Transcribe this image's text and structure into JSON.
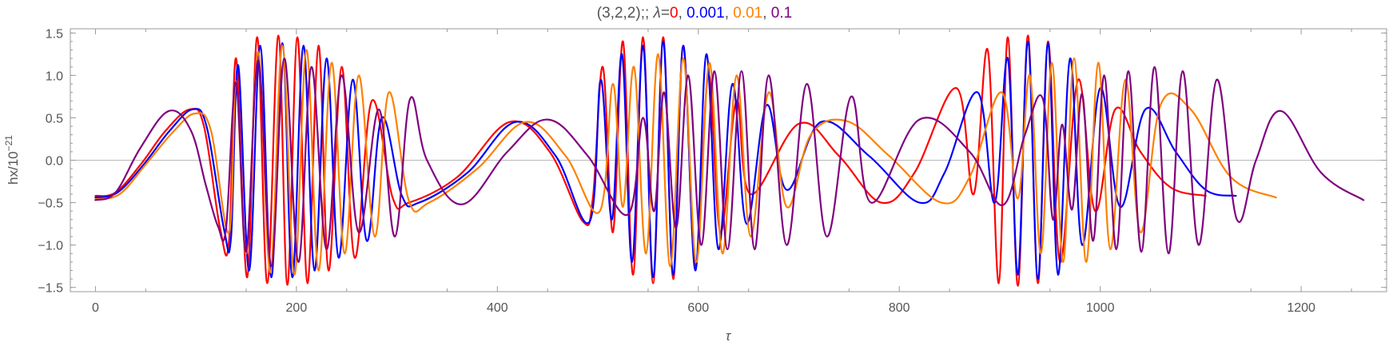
{
  "chart_data": {
    "type": "line",
    "title": {
      "prefix": "(3,2,2);; ",
      "symbol": "λ",
      "equals": "=",
      "separator": ", ",
      "parts": [
        {
          "text": "0",
          "color": "#ff0000"
        },
        {
          "text": "0.001",
          "color": "#0000ff"
        },
        {
          "text": "0.01",
          "color": "#ff8000"
        },
        {
          "text": "0.1",
          "color": "#800080"
        }
      ]
    },
    "xlabel": "τ",
    "ylabel": {
      "base": "hx/10",
      "exponent": "−21"
    },
    "xlim": [
      -25,
      1285
    ],
    "ylim": [
      -1.55,
      1.55
    ],
    "x_ticks": [
      {
        "value": 0,
        "label": "0"
      },
      {
        "value": 200,
        "label": "200"
      },
      {
        "value": 400,
        "label": "400"
      },
      {
        "value": 600,
        "label": "600"
      },
      {
        "value": 800,
        "label": "800"
      },
      {
        "value": 1000,
        "label": "1000"
      },
      {
        "value": 1200,
        "label": "1200"
      }
    ],
    "y_ticks": [
      {
        "value": -1.5,
        "label": "−1.5"
      },
      {
        "value": -1.0,
        "label": "−1.0"
      },
      {
        "value": -0.5,
        "label": "−0.5"
      },
      {
        "value": 0.0,
        "label": "0.0"
      },
      {
        "value": 0.5,
        "label": "0.5"
      },
      {
        "value": 1.0,
        "label": "1.0"
      },
      {
        "value": 1.5,
        "label": "1.5"
      }
    ],
    "zero_line": true,
    "grid": false,
    "legend": "none",
    "series": [
      {
        "color": "#ff0000",
        "x_end": 1105,
        "y_start": -0.42,
        "points": [
          [
            0,
            -0.42
          ],
          [
            20,
            -0.38
          ],
          [
            45,
            -0.05
          ],
          [
            70,
            0.35
          ],
          [
            94,
            0.6
          ],
          [
            108,
            0.4
          ],
          [
            124,
            -0.8
          ],
          [
            133,
            -0.95
          ],
          [
            140,
            1.2
          ],
          [
            151,
            -1.38
          ],
          [
            161,
            1.45
          ],
          [
            171,
            -1.45
          ],
          [
            182,
            1.47
          ],
          [
            191,
            -1.47
          ],
          [
            201,
            1.45
          ],
          [
            211,
            -1.45
          ],
          [
            222,
            1.35
          ],
          [
            232,
            -1.3
          ],
          [
            245,
            1.1
          ],
          [
            258,
            -1.15
          ],
          [
            275,
            0.7
          ],
          [
            296,
            -0.45
          ],
          [
            312,
            -0.5
          ],
          [
            360,
            -0.2
          ],
          [
            412,
            0.45
          ],
          [
            452,
            0.1
          ],
          [
            485,
            -0.72
          ],
          [
            495,
            -0.45
          ],
          [
            505,
            1.1
          ],
          [
            515,
            -0.85
          ],
          [
            525,
            1.4
          ],
          [
            535,
            -1.35
          ],
          [
            545,
            1.45
          ],
          [
            555,
            -1.45
          ],
          [
            565,
            1.45
          ],
          [
            575,
            -1.4
          ],
          [
            585,
            1.35
          ],
          [
            597,
            -1.25
          ],
          [
            610,
            1.0
          ],
          [
            622,
            -0.85
          ],
          [
            638,
            0.7
          ],
          [
            652,
            -0.4
          ],
          [
            700,
            0.43
          ],
          [
            740,
            0.05
          ],
          [
            782,
            -0.5
          ],
          [
            815,
            -0.15
          ],
          [
            857,
            0.85
          ],
          [
            874,
            -0.4
          ],
          [
            888,
            1.3
          ],
          [
            899,
            -1.45
          ],
          [
            908,
            1.45
          ],
          [
            918,
            -1.48
          ],
          [
            928,
            1.47
          ],
          [
            938,
            -1.45
          ],
          [
            948,
            1.4
          ],
          [
            960,
            -1.2
          ],
          [
            978,
            0.95
          ],
          [
            995,
            -0.6
          ],
          [
            1015,
            0.6
          ],
          [
            1040,
            0.1
          ],
          [
            1070,
            -0.32
          ],
          [
            1105,
            -0.42
          ]
        ]
      },
      {
        "color": "#0000ff",
        "x_end": 1135,
        "y_start": -0.44,
        "points": [
          [
            0,
            -0.44
          ],
          [
            22,
            -0.38
          ],
          [
            48,
            -0.05
          ],
          [
            74,
            0.35
          ],
          [
            97,
            0.6
          ],
          [
            111,
            0.38
          ],
          [
            128,
            -0.82
          ],
          [
            135,
            -0.9
          ],
          [
            142,
            1.12
          ],
          [
            153,
            -1.3
          ],
          [
            164,
            1.35
          ],
          [
            175,
            -1.38
          ],
          [
            186,
            1.38
          ],
          [
            196,
            -1.38
          ],
          [
            207,
            1.35
          ],
          [
            218,
            -1.3
          ],
          [
            230,
            1.2
          ],
          [
            242,
            -1.15
          ],
          [
            256,
            0.95
          ],
          [
            270,
            -0.95
          ],
          [
            285,
            0.5
          ],
          [
            305,
            -0.42
          ],
          [
            322,
            -0.5
          ],
          [
            370,
            -0.15
          ],
          [
            418,
            0.45
          ],
          [
            458,
            0.05
          ],
          [
            492,
            -0.72
          ],
          [
            503,
            0.95
          ],
          [
            514,
            -0.7
          ],
          [
            524,
            1.25
          ],
          [
            534,
            -1.2
          ],
          [
            545,
            1.35
          ],
          [
            555,
            -1.38
          ],
          [
            565,
            1.4
          ],
          [
            575,
            -1.35
          ],
          [
            585,
            1.35
          ],
          [
            597,
            -1.3
          ],
          [
            608,
            1.25
          ],
          [
            620,
            -1.05
          ],
          [
            634,
            0.9
          ],
          [
            648,
            -0.75
          ],
          [
            668,
            0.65
          ],
          [
            688,
            -0.35
          ],
          [
            722,
            0.45
          ],
          [
            770,
            0.05
          ],
          [
            820,
            -0.5
          ],
          [
            845,
            -0.15
          ],
          [
            878,
            0.8
          ],
          [
            895,
            -0.5
          ],
          [
            908,
            1.2
          ],
          [
            918,
            -1.35
          ],
          [
            928,
            1.4
          ],
          [
            938,
            -1.4
          ],
          [
            948,
            1.38
          ],
          [
            958,
            -1.35
          ],
          [
            970,
            1.2
          ],
          [
            982,
            -1.0
          ],
          [
            1000,
            0.85
          ],
          [
            1020,
            -0.55
          ],
          [
            1045,
            0.6
          ],
          [
            1075,
            0.1
          ],
          [
            1105,
            -0.35
          ],
          [
            1135,
            -0.42
          ]
        ]
      },
      {
        "color": "#ff8000",
        "x_end": 1175,
        "y_start": -0.46,
        "points": [
          [
            0,
            -0.46
          ],
          [
            24,
            -0.4
          ],
          [
            50,
            -0.05
          ],
          [
            77,
            0.33
          ],
          [
            99,
            0.55
          ],
          [
            115,
            0.35
          ],
          [
            133,
            -0.85
          ],
          [
            140,
            0.93
          ],
          [
            150,
            -1.1
          ],
          [
            162,
            1.28
          ],
          [
            174,
            -1.32
          ],
          [
            186,
            1.35
          ],
          [
            198,
            -1.35
          ],
          [
            210,
            1.3
          ],
          [
            222,
            -1.3
          ],
          [
            235,
            1.15
          ],
          [
            248,
            -1.1
          ],
          [
            262,
            1.0
          ],
          [
            278,
            -0.9
          ],
          [
            292,
            0.8
          ],
          [
            312,
            -0.48
          ],
          [
            332,
            -0.5
          ],
          [
            380,
            -0.1
          ],
          [
            428,
            0.45
          ],
          [
            468,
            0.05
          ],
          [
            502,
            -0.6
          ],
          [
            515,
            0.9
          ],
          [
            525,
            -0.55
          ],
          [
            536,
            1.1
          ],
          [
            548,
            -1.1
          ],
          [
            560,
            1.25
          ],
          [
            572,
            -1.25
          ],
          [
            585,
            1.2
          ],
          [
            598,
            -1.2
          ],
          [
            611,
            1.15
          ],
          [
            624,
            -1.1
          ],
          [
            638,
            1.0
          ],
          [
            652,
            -0.9
          ],
          [
            670,
            0.8
          ],
          [
            688,
            -0.55
          ],
          [
            712,
            0.3
          ],
          [
            748,
            0.46
          ],
          [
            790,
            0.05
          ],
          [
            842,
            -0.5
          ],
          [
            870,
            -0.2
          ],
          [
            902,
            0.8
          ],
          [
            918,
            -0.45
          ],
          [
            930,
            1.0
          ],
          [
            941,
            -1.1
          ],
          [
            952,
            1.15
          ],
          [
            963,
            -1.2
          ],
          [
            974,
            1.2
          ],
          [
            986,
            -1.2
          ],
          [
            998,
            1.15
          ],
          [
            1010,
            -1.05
          ],
          [
            1025,
            0.95
          ],
          [
            1040,
            -0.85
          ],
          [
            1060,
            0.65
          ],
          [
            1090,
            0.6
          ],
          [
            1130,
            -0.2
          ],
          [
            1175,
            -0.44
          ]
        ]
      },
      {
        "color": "#800080",
        "x_end": 1262,
        "y_start": -0.47,
        "points": [
          [
            0,
            -0.47
          ],
          [
            20,
            -0.38
          ],
          [
            45,
            0.15
          ],
          [
            73,
            0.58
          ],
          [
            95,
            0.35
          ],
          [
            110,
            -0.3
          ],
          [
            122,
            -0.78
          ],
          [
            130,
            -0.8
          ],
          [
            140,
            0.92
          ],
          [
            150,
            -1.08
          ],
          [
            162,
            1.18
          ],
          [
            175,
            -1.25
          ],
          [
            188,
            1.2
          ],
          [
            202,
            -1.2
          ],
          [
            215,
            1.1
          ],
          [
            230,
            -1.05
          ],
          [
            245,
            1.0
          ],
          [
            262,
            -0.85
          ],
          [
            282,
            0.6
          ],
          [
            298,
            -0.9
          ],
          [
            313,
            0.72
          ],
          [
            330,
            0.0
          ],
          [
            365,
            -0.52
          ],
          [
            410,
            0.1
          ],
          [
            450,
            0.48
          ],
          [
            490,
            0.05
          ],
          [
            530,
            -0.64
          ],
          [
            545,
            0.5
          ],
          [
            556,
            -0.6
          ],
          [
            566,
            0.8
          ],
          [
            578,
            -0.8
          ],
          [
            590,
            1.0
          ],
          [
            603,
            -1.0
          ],
          [
            616,
            1.05
          ],
          [
            629,
            -1.05
          ],
          [
            643,
            1.05
          ],
          [
            656,
            -1.05
          ],
          [
            670,
            1.0
          ],
          [
            688,
            -1.0
          ],
          [
            708,
            0.9
          ],
          [
            728,
            -0.9
          ],
          [
            752,
            0.75
          ],
          [
            772,
            -0.5
          ],
          [
            820,
            0.48
          ],
          [
            870,
            0.1
          ],
          [
            903,
            -0.53
          ],
          [
            925,
            0.3
          ],
          [
            943,
            0.72
          ],
          [
            953,
            -0.7
          ],
          [
            962,
            0.42
          ],
          [
            972,
            -0.58
          ],
          [
            982,
            0.78
          ],
          [
            993,
            -0.95
          ],
          [
            1004,
            1.0
          ],
          [
            1016,
            -1.05
          ],
          [
            1028,
            1.05
          ],
          [
            1041,
            -1.08
          ],
          [
            1054,
            1.1
          ],
          [
            1068,
            -1.1
          ],
          [
            1082,
            1.05
          ],
          [
            1098,
            -1.0
          ],
          [
            1116,
            0.95
          ],
          [
            1136,
            -0.7
          ],
          [
            1155,
            0.0
          ],
          [
            1180,
            0.58
          ],
          [
            1220,
            -0.15
          ],
          [
            1262,
            -0.47
          ]
        ]
      }
    ]
  }
}
